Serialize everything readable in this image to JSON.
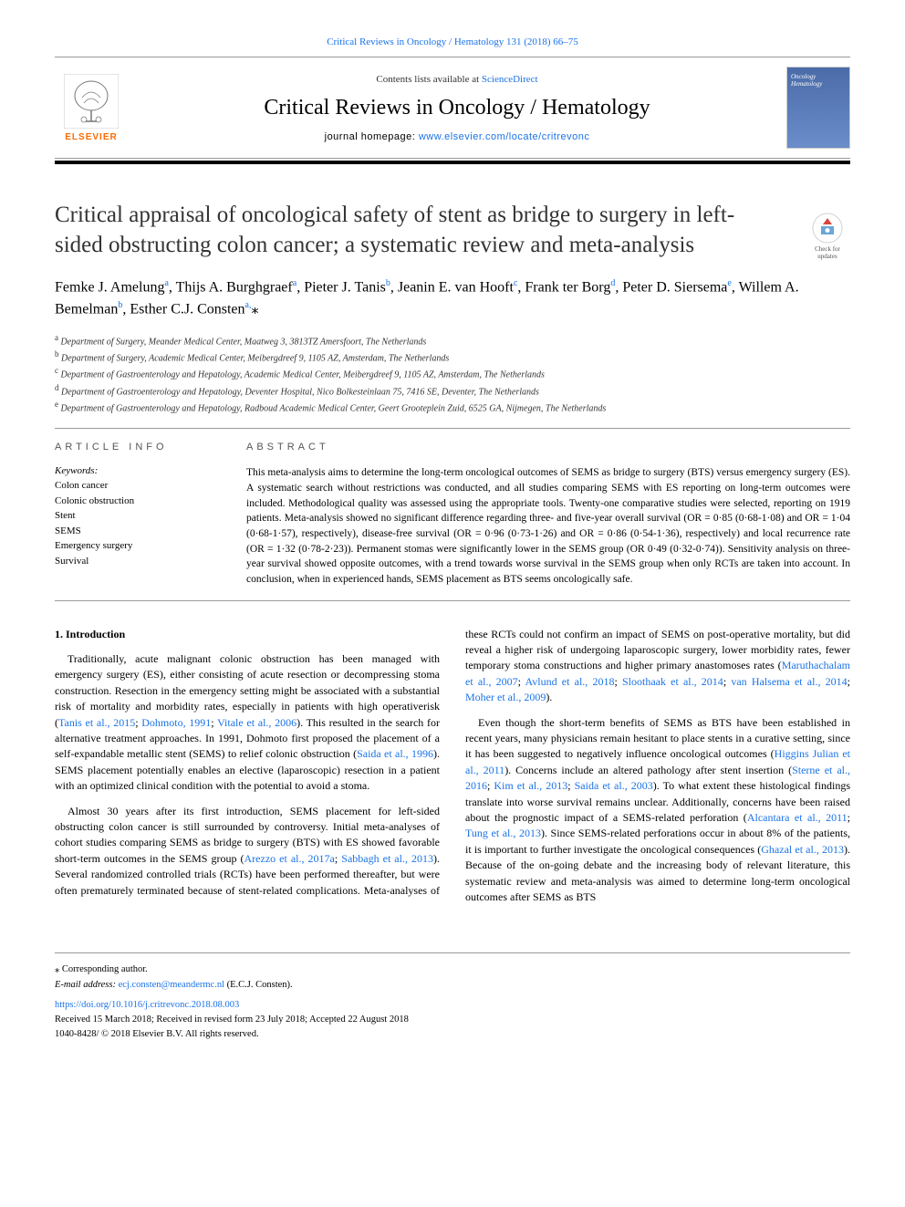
{
  "top_citation": "Critical Reviews in Oncology / Hematology 131 (2018) 66–75",
  "header": {
    "publisher_name": "ELSEVIER",
    "publisher_color": "#ff6b00",
    "contents_pre": "Contents lists available at ",
    "contents_link": "ScienceDirect",
    "journal_title": "Critical Reviews in Oncology / Hematology",
    "homepage_pre": "journal homepage: ",
    "homepage_link": "www.elsevier.com/locate/critrevonc",
    "cover_text_line1": "Oncology",
    "cover_text_line2": "Hematology",
    "accent_color": "#000000"
  },
  "check_updates_label": "Check for updates",
  "article": {
    "title": "Critical appraisal of oncological safety of stent as bridge to surgery in left-sided obstructing colon cancer; a systematic review and meta-analysis",
    "authors_html": "Femke J. Amelung<sup>a</sup>, Thijs A. Burghgraef<sup>a</sup>, Pieter J. Tanis<sup>b</sup>, Jeanin E. van Hooft<sup>c</sup>, Frank ter Borg<sup>d</sup>, Peter D. Siersema<sup>e</sup>, Willem A. Bemelman<sup>b</sup>, Esther C.J. Consten<sup>a,</sup><span class='corr-star'>⁎</span>",
    "affiliations": [
      {
        "sup": "a",
        "text": "Department of Surgery, Meander Medical Center, Maatweg 3, 3813TZ Amersfoort, The Netherlands"
      },
      {
        "sup": "b",
        "text": "Department of Surgery, Academic Medical Center, Meibergdreef 9, 1105 AZ, Amsterdam, The Netherlands"
      },
      {
        "sup": "c",
        "text": "Department of Gastroenterology and Hepatology, Academic Medical Center, Meibergdreef 9, 1105 AZ, Amsterdam, The Netherlands"
      },
      {
        "sup": "d",
        "text": "Department of Gastroenterology and Hepatology, Deventer Hospital, Nico Bolkesteinlaan 75, 7416 SE, Deventer, The Netherlands"
      },
      {
        "sup": "e",
        "text": "Department of Gastroenterology and Hepatology, Radboud Academic Medical Center, Geert Grooteplein Zuid, 6525 GA, Nijmegen, The Netherlands"
      }
    ]
  },
  "article_info": {
    "heading": "ARTICLE INFO",
    "keywords_label": "Keywords:",
    "keywords": [
      "Colon cancer",
      "Colonic obstruction",
      "Stent",
      "SEMS",
      "Emergency surgery",
      "Survival"
    ]
  },
  "abstract": {
    "heading": "ABSTRACT",
    "text": "This meta-analysis aims to determine the long-term oncological outcomes of SEMS as bridge to surgery (BTS) versus emergency surgery (ES). A systematic search without restrictions was conducted, and all studies comparing SEMS with ES reporting on long-term outcomes were included. Methodological quality was assessed using the appropriate tools. Twenty-one comparative studies were selected, reporting on 1919 patients. Meta-analysis showed no significant difference regarding three- and five-year overall survival (OR = 0·85 (0·68-1·08) and OR = 1·04 (0·68-1·57), respectively), disease-free survival (OR = 0·96 (0·73-1·26) and OR = 0·86 (0·54-1·36), respectively) and local recurrence rate (OR = 1·32 (0·78-2·23)). Permanent stomas were significantly lower in the SEMS group (OR 0·49 (0·32-0·74)). Sensitivity analysis on three-year survival showed opposite outcomes, with a trend towards worse survival in the SEMS group when only RCTs are taken into account. In conclusion, when in experienced hands, SEMS placement as BTS seems oncologically safe."
  },
  "intro": {
    "heading": "1. Introduction",
    "para1_parts": [
      "Traditionally, acute malignant colonic obstruction has been managed with emergency surgery (ES), either consisting of acute resection or decompressing stoma construction. Resection in the emergency setting might be associated with a substantial risk of mortality and morbidity rates, especially in patients with high operativerisk (",
      "Tanis et al., 2015",
      "; ",
      "Dohmoto, 1991",
      "; ",
      "Vitale et al., 2006",
      "). This resulted in the search for alternative treatment approaches. In 1991, Dohmoto first proposed the placement of a self-expandable metallic stent (SEMS) to relief colonic obstruction (",
      "Saida et al., 1996",
      "). SEMS placement potentially enables an elective (laparoscopic) resection in a patient with an optimized clinical condition with the potential to avoid a stoma."
    ],
    "para2_parts": [
      "Almost 30 years after its first introduction, SEMS placement for left-sided obstructing colon cancer is still surrounded by controversy. Initial meta-analyses of cohort studies comparing SEMS as bridge to surgery (BTS) with ES showed favorable short-term outcomes in the SEMS group (",
      "Arezzo et al., 2017a",
      "; ",
      "Sabbagh et al., 2013",
      "). Several randomized controlled trials (RCTs) have been performed thereafter, but were often prematurely terminated because of stent-related complications. Meta-"
    ],
    "para2b_parts": [
      "analyses of these RCTs could not confirm an impact of SEMS on post-operative mortality, but did reveal a higher risk of undergoing laparoscopic surgery, lower morbidity rates, fewer temporary stoma constructions and higher primary anastomoses rates (",
      "Maruthachalam et al., 2007",
      "; ",
      "Avlund et al., 2018",
      "; ",
      "Sloothaak et al., 2014",
      "; ",
      "van Halsema et al., 2014",
      "; ",
      "Moher et al., 2009",
      ")."
    ],
    "para3_parts": [
      "Even though the short-term benefits of SEMS as BTS have been established in recent years, many physicians remain hesitant to place stents in a curative setting, since it has been suggested to negatively influence oncological outcomes (",
      "Higgins Julian et al., 2011",
      "). Concerns include an altered pathology after stent insertion (",
      "Sterne et al., 2016",
      "; ",
      "Kim et al., 2013",
      "; ",
      "Saida et al., 2003",
      "). To what extent these histological findings translate into worse survival remains unclear. Additionally, concerns have been raised about the prognostic impact of a SEMS-related perforation (",
      "Alcantara et al., 2011",
      "; ",
      "Tung et al., 2013",
      "). Since SEMS-related perforations occur in about 8% of the patients, it is important to further investigate the oncological consequences (",
      "Ghazal et al., 2013",
      "). Because of the on-going debate and the increasing body of relevant literature, this systematic review and meta-analysis was aimed to determine long-term oncological outcomes after SEMS as BTS"
    ]
  },
  "footer": {
    "corresponding_label": "⁎ Corresponding author.",
    "email_label": "E-mail address: ",
    "email_link": "ecj.consten@meandermc.nl",
    "email_post": " (E.C.J. Consten).",
    "doi": "https://doi.org/10.1016/j.critrevonc.2018.08.003",
    "received": "Received 15 March 2018; Received in revised form 23 July 2018; Accepted 22 August 2018",
    "issn": "1040-8428/ © 2018 Elsevier B.V. All rights reserved."
  },
  "colors": {
    "link": "#1a73e8",
    "text": "#000000",
    "accent": "#000000",
    "border": "#999999"
  }
}
